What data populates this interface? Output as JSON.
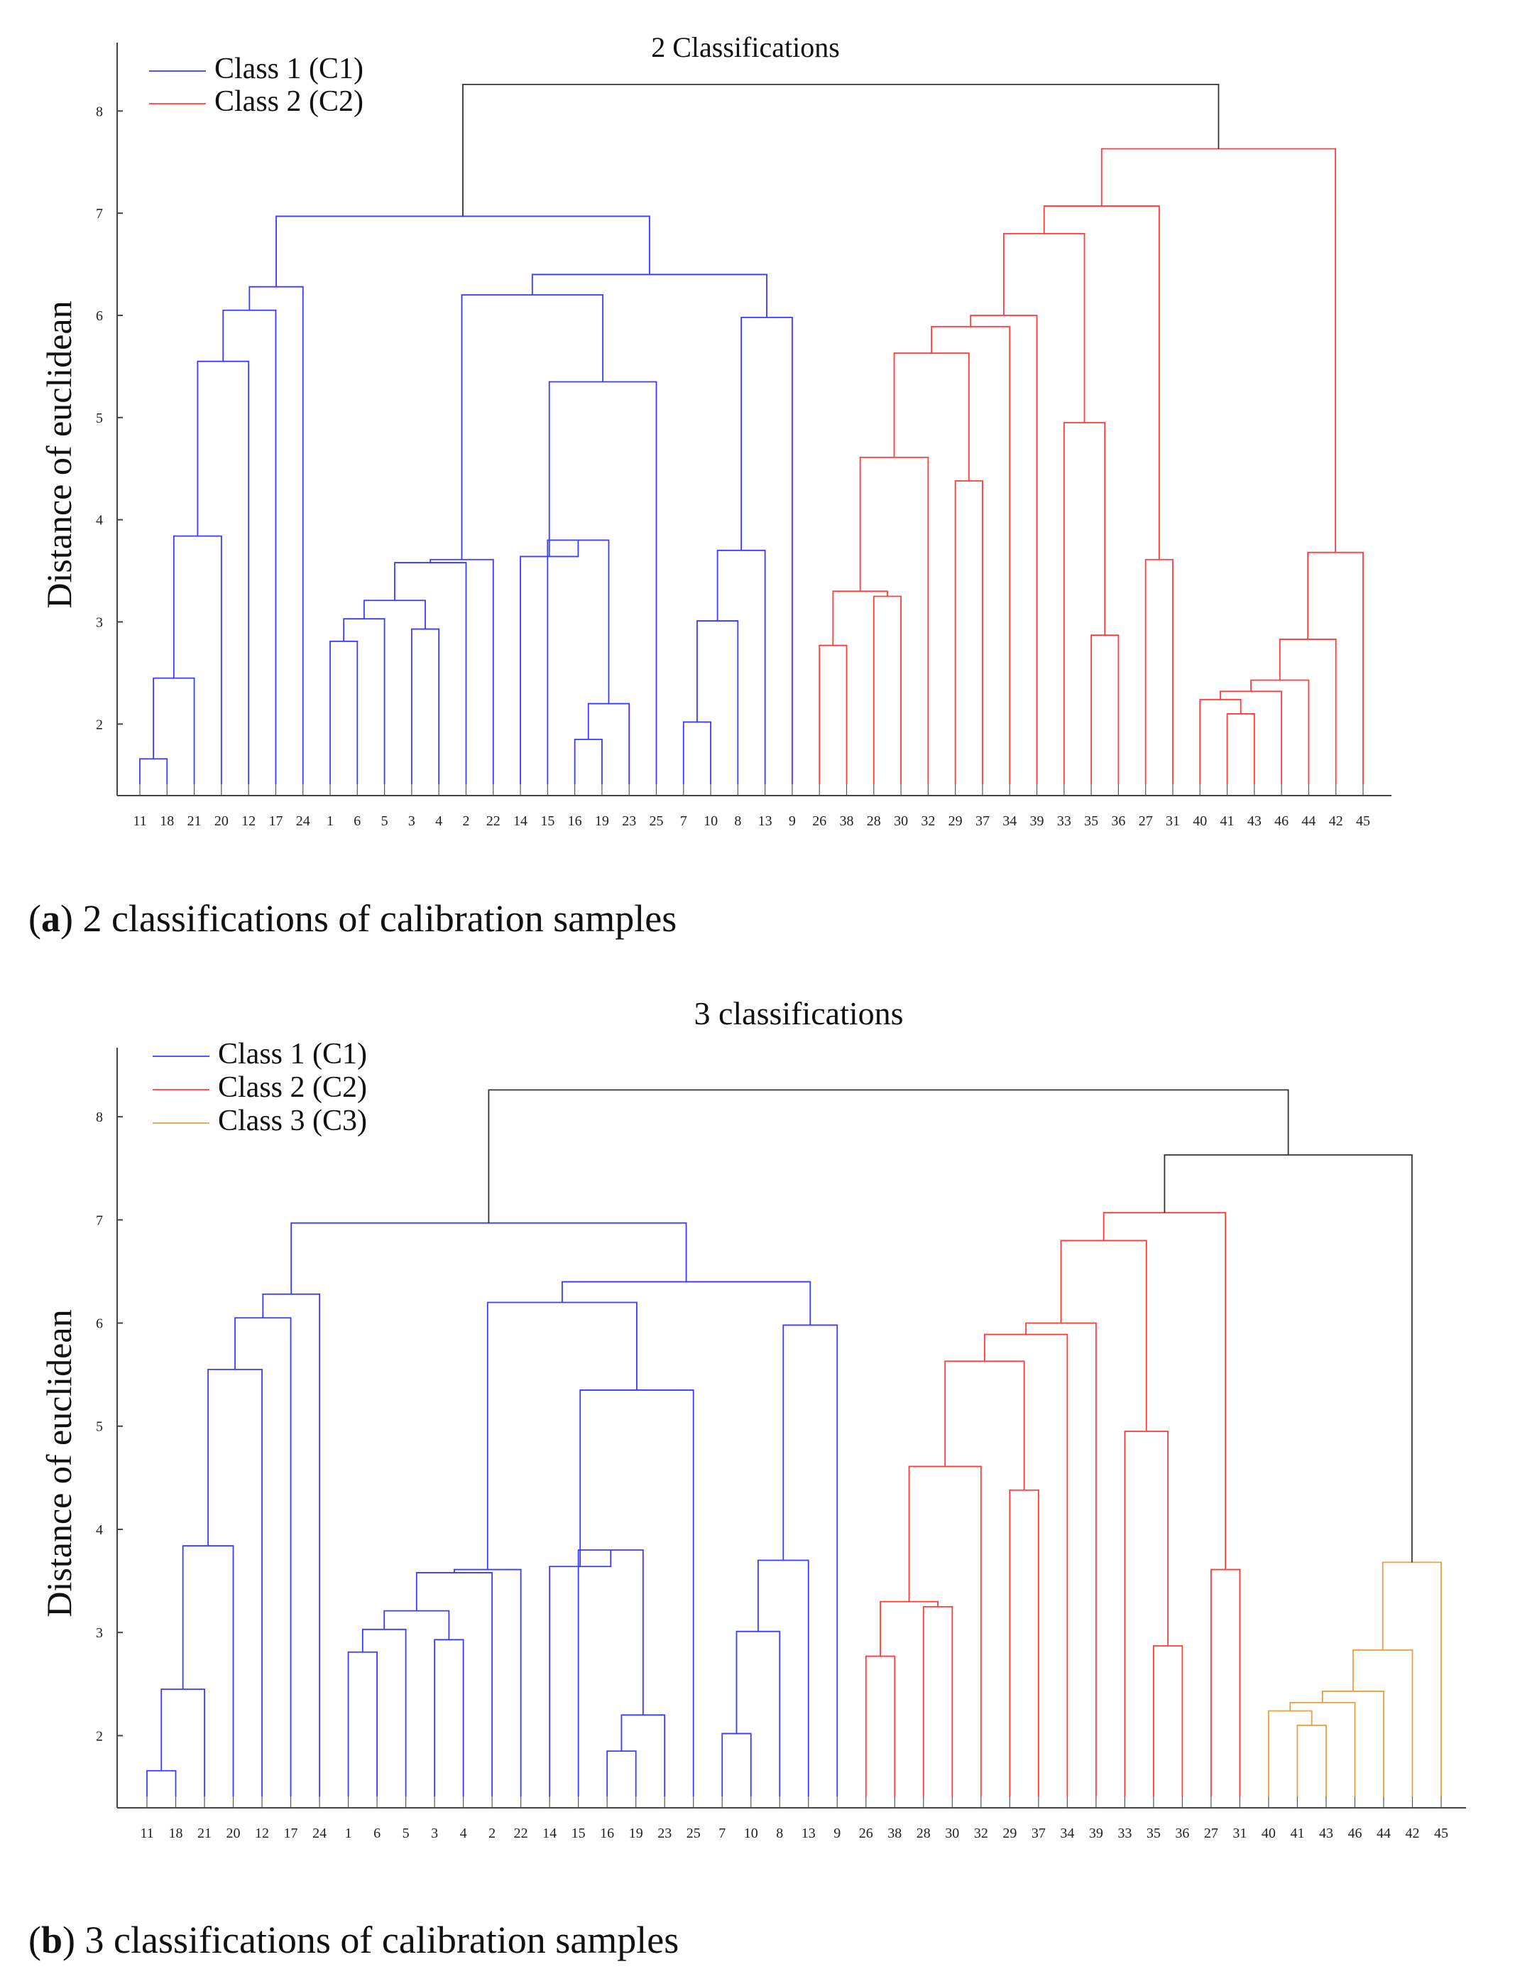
{
  "colors": {
    "class1": "#3b3bff",
    "class2": "#ff3b3b",
    "class3": "#e8a040",
    "root": "#333333",
    "axis": "#444444"
  },
  "captions": {
    "a": {
      "letter": "a",
      "text": " 2 classifications of calibration samples"
    },
    "b": {
      "letter": "b",
      "text": " 3 classifications of calibration samples"
    }
  },
  "chart_data": [
    {
      "type": "dendrogram",
      "title": "2 Classifications",
      "ylabel": "Distance of euclidean",
      "xlabel": "",
      "ylim": [
        1.3,
        8.6
      ],
      "yticks": [
        2,
        3,
        4,
        5,
        6,
        7,
        8
      ],
      "leaf_order": [
        "11",
        "18",
        "21",
        "20",
        "12",
        "17",
        "24",
        "1",
        "6",
        "5",
        "3",
        "4",
        "2",
        "22",
        "14",
        "15",
        "16",
        "19",
        "23",
        "25",
        "7",
        "10",
        "8",
        "13",
        "9",
        "26",
        "38",
        "28",
        "30",
        "32",
        "29",
        "37",
        "34",
        "39",
        "33",
        "35",
        "36",
        "27",
        "31",
        "40",
        "41",
        "43",
        "46",
        "44",
        "42",
        "45"
      ],
      "legend": [
        {
          "label": "Class 1 (C1)",
          "color": "#3b3bff"
        },
        {
          "label": "Class 2 (C2)",
          "color": "#ff3b3b"
        }
      ],
      "merges": [
        [
          0,
          1,
          1.66,
          "c1"
        ],
        [
          2,
          46,
          2.45,
          "c1"
        ],
        [
          3,
          47,
          3.84,
          "c1"
        ],
        [
          4,
          48,
          5.55,
          "c1"
        ],
        [
          5,
          49,
          6.05,
          "c1"
        ],
        [
          6,
          50,
          6.28,
          "c1"
        ],
        [
          7,
          8,
          2.81,
          "c1"
        ],
        [
          9,
          52,
          3.03,
          "c1"
        ],
        [
          10,
          11,
          2.93,
          "c1"
        ],
        [
          53,
          54,
          3.21,
          "c1"
        ],
        [
          55,
          12,
          3.58,
          "c1"
        ],
        [
          56,
          13,
          3.61,
          "c1"
        ],
        [
          16,
          17,
          1.85,
          "c1"
        ],
        [
          58,
          18,
          2.2,
          "c1"
        ],
        [
          15,
          59,
          3.8,
          "c1"
        ],
        [
          14,
          60,
          3.64,
          "c1"
        ],
        [
          61,
          19,
          5.35,
          "c1"
        ],
        [
          57,
          62,
          6.2,
          "c1"
        ],
        [
          20,
          21,
          2.02,
          "c1"
        ],
        [
          64,
          22,
          3.01,
          "c1"
        ],
        [
          65,
          23,
          3.7,
          "c1"
        ],
        [
          66,
          24,
          5.98,
          "c1"
        ],
        [
          63,
          67,
          6.4,
          "c1"
        ],
        [
          51,
          68,
          6.97,
          "c1"
        ],
        [
          25,
          26,
          2.77,
          "c2"
        ],
        [
          27,
          28,
          3.25,
          "c2"
        ],
        [
          70,
          71,
          3.3,
          "c2"
        ],
        [
          72,
          29,
          4.61,
          "c2"
        ],
        [
          30,
          31,
          4.38,
          "c2"
        ],
        [
          73,
          74,
          5.63,
          "c2"
        ],
        [
          75,
          32,
          5.89,
          "c2"
        ],
        [
          76,
          33,
          6.0,
          "c2"
        ],
        [
          35,
          36,
          2.87,
          "c2"
        ],
        [
          34,
          78,
          4.95,
          "c2"
        ],
        [
          77,
          79,
          6.8,
          "c2"
        ],
        [
          37,
          38,
          3.61,
          "c2"
        ],
        [
          80,
          81,
          7.07,
          "c2"
        ],
        [
          40,
          41,
          2.1,
          "c2"
        ],
        [
          39,
          83,
          2.24,
          "c2"
        ],
        [
          84,
          42,
          2.32,
          "c2"
        ],
        [
          85,
          43,
          2.43,
          "c2"
        ],
        [
          86,
          44,
          2.83,
          "c2"
        ],
        [
          87,
          45,
          3.68,
          "c2"
        ],
        [
          82,
          88,
          7.63,
          "c2"
        ],
        [
          69,
          89,
          8.26,
          "root"
        ]
      ]
    },
    {
      "type": "dendrogram",
      "title": "3 classifications",
      "ylabel": "Distance of euclidean",
      "xlabel": "",
      "ylim": [
        1.3,
        8.6
      ],
      "yticks": [
        2,
        3,
        4,
        5,
        6,
        7,
        8
      ],
      "leaf_order": [
        "11",
        "18",
        "21",
        "20",
        "12",
        "17",
        "24",
        "1",
        "6",
        "5",
        "3",
        "4",
        "2",
        "22",
        "14",
        "15",
        "16",
        "19",
        "23",
        "25",
        "7",
        "10",
        "8",
        "13",
        "9",
        "26",
        "38",
        "28",
        "30",
        "32",
        "29",
        "37",
        "34",
        "39",
        "33",
        "35",
        "36",
        "27",
        "31",
        "40",
        "41",
        "43",
        "46",
        "44",
        "42",
        "45"
      ],
      "legend": [
        {
          "label": "Class 1 (C1)",
          "color": "#3b3bff"
        },
        {
          "label": "Class 2 (C2)",
          "color": "#ff3b3b"
        },
        {
          "label": "Class 3 (C3)",
          "color": "#e8a040"
        }
      ],
      "merges": [
        [
          0,
          1,
          1.66,
          "c1"
        ],
        [
          2,
          46,
          2.45,
          "c1"
        ],
        [
          3,
          47,
          3.84,
          "c1"
        ],
        [
          4,
          48,
          5.55,
          "c1"
        ],
        [
          5,
          49,
          6.05,
          "c1"
        ],
        [
          6,
          50,
          6.28,
          "c1"
        ],
        [
          7,
          8,
          2.81,
          "c1"
        ],
        [
          9,
          52,
          3.03,
          "c1"
        ],
        [
          10,
          11,
          2.93,
          "c1"
        ],
        [
          53,
          54,
          3.21,
          "c1"
        ],
        [
          55,
          12,
          3.58,
          "c1"
        ],
        [
          56,
          13,
          3.61,
          "c1"
        ],
        [
          16,
          17,
          1.85,
          "c1"
        ],
        [
          58,
          18,
          2.2,
          "c1"
        ],
        [
          15,
          59,
          3.8,
          "c1"
        ],
        [
          14,
          60,
          3.64,
          "c1"
        ],
        [
          61,
          19,
          5.35,
          "c1"
        ],
        [
          57,
          62,
          6.2,
          "c1"
        ],
        [
          20,
          21,
          2.02,
          "c1"
        ],
        [
          64,
          22,
          3.01,
          "c1"
        ],
        [
          65,
          23,
          3.7,
          "c1"
        ],
        [
          66,
          24,
          5.98,
          "c1"
        ],
        [
          63,
          67,
          6.4,
          "c1"
        ],
        [
          51,
          68,
          6.97,
          "c1"
        ],
        [
          25,
          26,
          2.77,
          "c2"
        ],
        [
          27,
          28,
          3.25,
          "c2"
        ],
        [
          70,
          71,
          3.3,
          "c2"
        ],
        [
          72,
          29,
          4.61,
          "c2"
        ],
        [
          30,
          31,
          4.38,
          "c2"
        ],
        [
          73,
          74,
          5.63,
          "c2"
        ],
        [
          75,
          32,
          5.89,
          "c2"
        ],
        [
          76,
          33,
          6.0,
          "c2"
        ],
        [
          35,
          36,
          2.87,
          "c2"
        ],
        [
          34,
          78,
          4.95,
          "c2"
        ],
        [
          77,
          79,
          6.8,
          "c2"
        ],
        [
          37,
          38,
          3.61,
          "c2"
        ],
        [
          80,
          81,
          7.07,
          "c2"
        ],
        [
          40,
          41,
          2.1,
          "c3"
        ],
        [
          39,
          83,
          2.24,
          "c3"
        ],
        [
          84,
          42,
          2.32,
          "c3"
        ],
        [
          85,
          43,
          2.43,
          "c3"
        ],
        [
          86,
          44,
          2.83,
          "c3"
        ],
        [
          87,
          45,
          3.68,
          "c3"
        ],
        [
          82,
          88,
          7.63,
          "root"
        ],
        [
          69,
          89,
          8.26,
          "root"
        ]
      ]
    }
  ]
}
